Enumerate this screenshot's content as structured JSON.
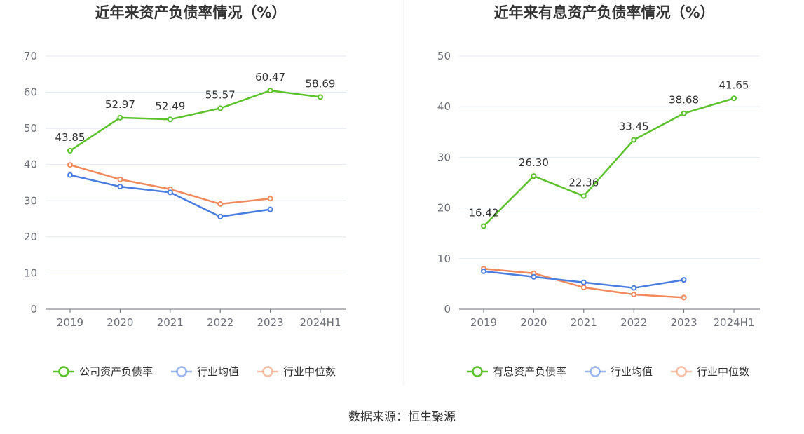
{
  "chart_data": [
    {
      "type": "line",
      "title": "近年来资产负债率情况（%）",
      "categories": [
        "2019",
        "2020",
        "2021",
        "2022",
        "2023",
        "2024H1"
      ],
      "ylim": [
        0,
        70
      ],
      "yticks": [
        0,
        10,
        20,
        30,
        40,
        50,
        60,
        70
      ],
      "grid": true,
      "legend_position": "bottom",
      "series": [
        {
          "name": "公司资产负债率",
          "color": "#5cc22c",
          "labels": true,
          "values": [
            43.85,
            52.97,
            52.49,
            55.57,
            60.47,
            58.69
          ]
        },
        {
          "name": "行业均值",
          "color": "#4a7de0",
          "labels": false,
          "values": [
            37.1,
            33.9,
            32.3,
            25.6,
            27.6,
            null
          ]
        },
        {
          "name": "行业中位数",
          "color": "#f08a5d",
          "labels": false,
          "values": [
            39.9,
            35.9,
            33.2,
            29.1,
            30.6,
            null
          ]
        }
      ]
    },
    {
      "type": "line",
      "title": "近年来有息资产负债率情况（%）",
      "categories": [
        "2019",
        "2020",
        "2021",
        "2022",
        "2023",
        "2024H1"
      ],
      "ylim": [
        0,
        50
      ],
      "yticks": [
        0,
        10,
        20,
        30,
        40,
        50
      ],
      "grid": true,
      "legend_position": "bottom",
      "series": [
        {
          "name": "有息资产负债率",
          "color": "#5cc22c",
          "labels": true,
          "values": [
            16.42,
            26.3,
            22.36,
            33.45,
            38.68,
            41.65
          ]
        },
        {
          "name": "行业均值",
          "color": "#4a7de0",
          "labels": false,
          "values": [
            7.5,
            6.4,
            5.3,
            4.2,
            5.8,
            null
          ]
        },
        {
          "name": "行业中位数",
          "color": "#f08a5d",
          "labels": false,
          "values": [
            8.0,
            7.1,
            4.3,
            2.9,
            2.3,
            null
          ]
        }
      ]
    }
  ],
  "source": "数据来源：恒生聚源",
  "colors": {
    "axis": "#6e7079",
    "grid": "#e0e6f1",
    "divider": "#eeeeee"
  }
}
